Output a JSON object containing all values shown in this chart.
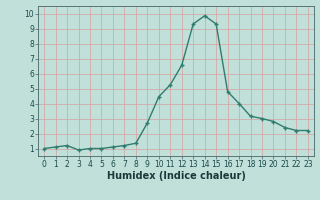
{
  "x": [
    0,
    1,
    2,
    3,
    4,
    5,
    6,
    7,
    8,
    9,
    10,
    11,
    12,
    13,
    14,
    15,
    16,
    17,
    18,
    19,
    20,
    21,
    22,
    23
  ],
  "y": [
    1.0,
    1.1,
    1.2,
    0.9,
    1.0,
    1.0,
    1.1,
    1.2,
    1.35,
    2.7,
    4.45,
    5.25,
    6.55,
    9.3,
    9.85,
    9.3,
    4.8,
    4.0,
    3.15,
    3.0,
    2.8,
    2.4,
    2.2,
    2.2
  ],
  "line_color": "#2e7d6e",
  "marker": "+",
  "bg_color": "#c2e0da",
  "grid_color": "#b0d4cc",
  "xlabel": "Humidex (Indice chaleur)",
  "xlim": [
    -0.5,
    23.5
  ],
  "ylim": [
    0.5,
    10.5
  ],
  "yticks": [
    1,
    2,
    3,
    4,
    5,
    6,
    7,
    8,
    9,
    10
  ],
  "xticks": [
    0,
    1,
    2,
    3,
    4,
    5,
    6,
    7,
    8,
    9,
    10,
    11,
    12,
    13,
    14,
    15,
    16,
    17,
    18,
    19,
    20,
    21,
    22,
    23
  ],
  "tick_label_fontsize": 5.5,
  "xlabel_fontsize": 7.0,
  "line_width": 1.0,
  "marker_size": 3.5,
  "marker_ew": 1.0
}
